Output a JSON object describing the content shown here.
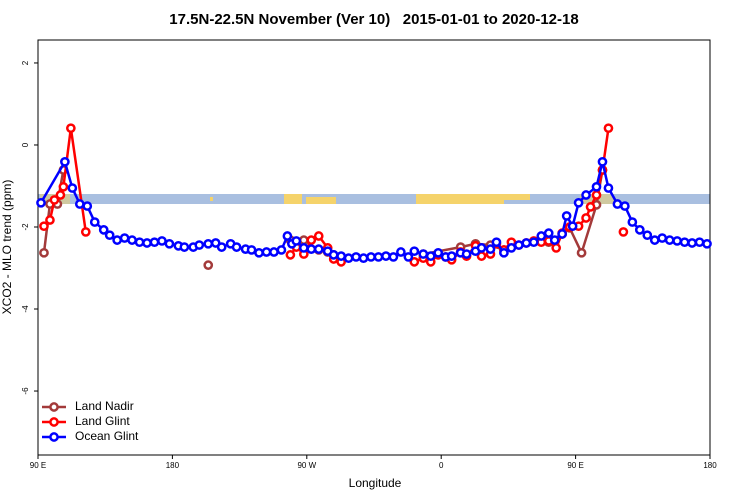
{
  "chart_data": {
    "type": "line",
    "title": "17.5N-22.5N November (Ver 10)   2015-01-01 to 2020-12-18",
    "xlabel": "Longitude",
    "ylabel": "XCO2 - MLO trend (ppm)",
    "xlim": [
      90,
      540
    ],
    "ylim": [
      -7.56,
      2.56
    ],
    "xticks": [
      {
        "value": 90,
        "label": "90 E"
      },
      180,
      {
        "value": 270,
        "label": "90 W"
      },
      {
        "value": 360,
        "label": "0"
      },
      {
        "value": 450,
        "label": "90 E"
      },
      180
    ],
    "yticks": [
      2,
      0,
      -2,
      -4,
      -6
    ],
    "legend": "bottom-left",
    "series": [
      {
        "name": "Land Nadir",
        "color": "#a33a3a",
        "x": [
          94,
          98,
          103,
          107,
          null,
          204,
          null,
          259,
          268,
          278,
          284,
          288,
          null,
          348,
          373,
          383,
          393,
          402,
          427,
          432,
          441,
          446,
          454,
          464,
          468
        ],
        "values": [
          -2.63,
          -1.44,
          -1.44,
          -0.61,
          null,
          -2.93,
          null,
          -2.32,
          -2.32,
          -2.56,
          -2.61,
          -2.68,
          null,
          -2.66,
          -2.49,
          -2.41,
          -2.44,
          -2.56,
          -2.27,
          -2.37,
          -2.17,
          -2.02,
          -2.63,
          -1.46,
          -0.61
        ]
      },
      {
        "name": "Land Glint",
        "color": "#ff0000",
        "x": [
          94,
          98,
          101,
          105,
          107,
          112,
          122,
          null,
          259,
          263,
          268,
          273,
          278,
          284,
          288,
          293,
          null,
          342,
          348,
          353,
          358,
          363,
          367,
          373,
          377,
          383,
          387,
          393,
          397,
          402,
          407,
          412,
          417,
          422,
          427,
          432,
          437,
          441,
          446,
          452,
          457,
          460,
          464,
          468,
          472,
          null,
          482
        ],
        "values": [
          -1.98,
          -1.83,
          -1.34,
          -1.22,
          -1.02,
          0.41,
          -2.12,
          null,
          -2.68,
          -2.49,
          -2.66,
          -2.32,
          -2.22,
          -2.51,
          -2.78,
          -2.85,
          null,
          -2.85,
          -2.76,
          -2.85,
          -2.68,
          -2.73,
          -2.8,
          -2.61,
          -2.71,
          -2.46,
          -2.71,
          -2.66,
          -2.41,
          -2.56,
          -2.37,
          -2.44,
          -2.39,
          -2.34,
          -2.37,
          -2.34,
          -2.51,
          -2.15,
          -2.0,
          -1.98,
          -1.78,
          -1.51,
          -1.22,
          -0.61,
          0.41,
          null,
          -2.12
        ]
      },
      {
        "name": "Ocean Glint",
        "color": "#0000ff",
        "x": [
          92,
          108,
          113,
          118,
          123,
          128,
          134,
          138,
          143,
          148,
          153,
          158,
          163,
          168,
          173,
          178,
          184,
          188,
          194,
          198,
          204,
          209,
          213,
          219,
          223,
          229,
          233,
          238,
          243,
          248,
          253,
          257,
          260,
          263,
          268,
          273,
          278,
          284,
          288,
          293,
          298,
          303,
          308,
          313,
          318,
          323,
          328,
          333,
          338,
          342,
          348,
          353,
          358,
          363,
          367,
          373,
          377,
          383,
          387,
          393,
          397,
          402,
          407,
          412,
          417,
          422,
          427,
          432,
          436,
          441,
          444,
          448,
          452,
          457,
          464,
          468,
          472,
          478,
          483,
          488,
          493,
          498,
          503,
          508,
          513,
          518,
          523,
          528,
          533,
          538
        ],
        "values": [
          -1.41,
          -0.41,
          -1.05,
          -1.44,
          -1.49,
          -1.88,
          -2.07,
          -2.2,
          -2.32,
          -2.27,
          -2.32,
          -2.37,
          -2.39,
          -2.37,
          -2.34,
          -2.41,
          -2.46,
          -2.49,
          -2.49,
          -2.44,
          -2.41,
          -2.39,
          -2.49,
          -2.41,
          -2.49,
          -2.54,
          -2.56,
          -2.63,
          -2.61,
          -2.61,
          -2.56,
          -2.22,
          -2.41,
          -2.34,
          -2.51,
          -2.54,
          -2.54,
          -2.59,
          -2.68,
          -2.71,
          -2.76,
          -2.73,
          -2.76,
          -2.73,
          -2.73,
          -2.71,
          -2.73,
          -2.61,
          -2.73,
          -2.59,
          -2.66,
          -2.71,
          -2.63,
          -2.73,
          -2.71,
          -2.63,
          -2.66,
          -2.59,
          -2.51,
          -2.54,
          -2.37,
          -2.63,
          -2.51,
          -2.44,
          -2.39,
          -2.37,
          -2.22,
          -2.15,
          -2.32,
          -2.17,
          -1.73,
          -1.98,
          -1.41,
          -1.22,
          -1.02,
          -0.41,
          -1.05,
          -1.44,
          -1.49,
          -1.88,
          -2.07,
          -2.2,
          -2.32,
          -2.27,
          -2.32,
          -2.34,
          -2.37,
          -2.39,
          -2.37,
          -2.41
        ]
      }
    ]
  }
}
